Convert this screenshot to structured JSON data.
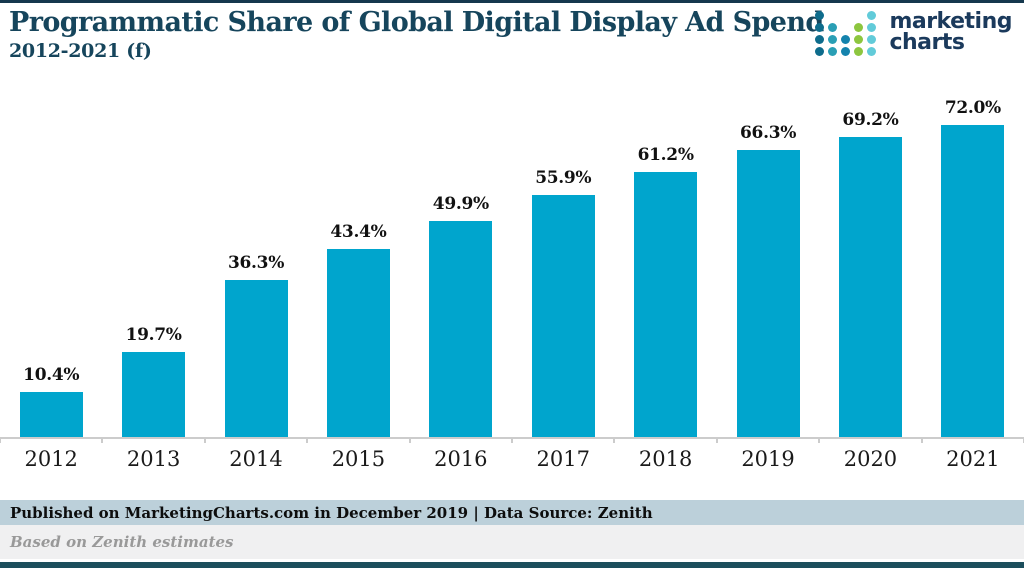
{
  "header": {
    "title": "Programmatic Share of Global Digital Display Ad Spend",
    "subtitle": "2012-2021 (f)"
  },
  "logo": {
    "text_line1": "marketing",
    "text_line2": "charts",
    "colors": {
      "dark": "#0e6c8c",
      "teal": "#2a9fb5",
      "blue": "#1583ad",
      "green": "#8dc63f",
      "cyan": "#62cbd9"
    },
    "dot_grid": [
      [
        "dark",
        null,
        null,
        null,
        "cyan"
      ],
      [
        "dark",
        "teal",
        null,
        "green",
        "cyan"
      ],
      [
        "dark",
        "teal",
        "blue",
        "green",
        "cyan"
      ],
      [
        "dark",
        "teal",
        "blue",
        "green",
        "cyan"
      ]
    ]
  },
  "chart_data": {
    "type": "bar",
    "title": "Programmatic Share of Global Digital Display Ad Spend 2012-2021 (f)",
    "categories": [
      "2012",
      "2013",
      "2014",
      "2015",
      "2016",
      "2017",
      "2018",
      "2019",
      "2020",
      "2021"
    ],
    "values": [
      10.4,
      19.7,
      36.3,
      43.4,
      49.9,
      55.9,
      61.2,
      66.3,
      69.2,
      72.0
    ],
    "labels": [
      "10.4%",
      "19.7%",
      "36.3%",
      "43.4%",
      "49.9%",
      "55.9%",
      "61.2%",
      "66.3%",
      "69.2%",
      "72.0%"
    ],
    "value_suffix": "%",
    "bar_color": "#00a5cd",
    "xlabel": "",
    "ylabel": "",
    "grid": false,
    "legend": false,
    "data_labels": "above-bars"
  },
  "footer": {
    "published_line": "Published on MarketingCharts.com in December 2019 | Data Source: Zenith",
    "note_line": "Based on Zenith estimates"
  }
}
